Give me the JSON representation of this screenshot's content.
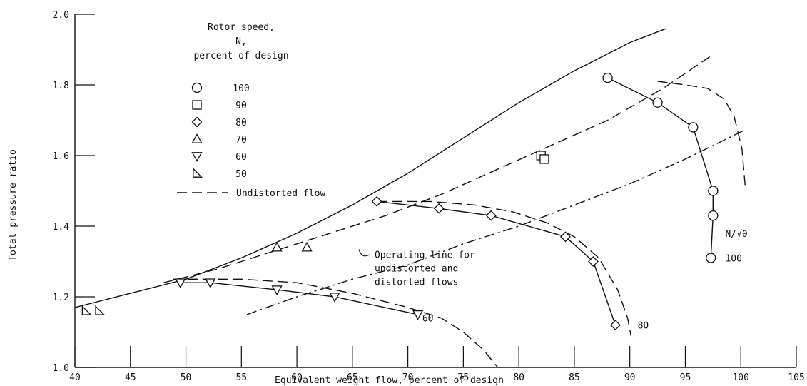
{
  "chart_data": {
    "type": "line",
    "title": "",
    "xlabel": "Equivalent weight flow, percent of design",
    "ylabel": "Total pressure ratio",
    "xlim": [
      40,
      105
    ],
    "ylim": [
      1.0,
      2.0
    ],
    "xticks": [
      40,
      45,
      50,
      55,
      60,
      65,
      70,
      75,
      80,
      85,
      90,
      95,
      100,
      105
    ],
    "yticks": [
      1.0,
      1.2,
      1.4,
      1.6,
      1.8,
      2.0
    ],
    "ytick_labels": [
      "1.0",
      "1.2",
      "1.4",
      "1.6",
      "1.8",
      "2.0"
    ],
    "grid": false,
    "legend": {
      "title_lines": [
        "Rotor speed,",
        "N,",
        "percent of design"
      ],
      "entries": [
        {
          "marker": "circle",
          "label": "100"
        },
        {
          "marker": "square",
          "label": "90"
        },
        {
          "marker": "diamond",
          "label": "80"
        },
        {
          "marker": "triangle-up",
          "label": "70"
        },
        {
          "marker": "triangle-down",
          "label": "60"
        },
        {
          "marker": "triangle-flag",
          "label": "50"
        }
      ],
      "dashed_label": "Undistorted flow"
    },
    "series": [
      {
        "marker": "circle",
        "style": "solid",
        "x": [
          88.0,
          92.5,
          95.7,
          97.5,
          97.5,
          97.3
        ],
        "y": [
          1.82,
          1.75,
          1.68,
          1.5,
          1.43,
          1.31
        ]
      },
      {
        "marker": "square",
        "style": "none",
        "x": [
          82.0,
          82.3
        ],
        "y": [
          1.6,
          1.59
        ]
      },
      {
        "marker": "diamond",
        "style": "solid",
        "x": [
          67.2,
          72.8,
          77.5,
          84.2,
          86.7,
          88.7
        ],
        "y": [
          1.47,
          1.45,
          1.43,
          1.37,
          1.3,
          1.12
        ]
      },
      {
        "marker": "triangle-up",
        "style": "none",
        "x": [
          58.2,
          60.9
        ],
        "y": [
          1.34,
          1.34
        ]
      },
      {
        "marker": "triangle-down",
        "style": "solid",
        "x": [
          49.5,
          52.2,
          58.2,
          63.4,
          70.9
        ],
        "y": [
          1.24,
          1.24,
          1.22,
          1.2,
          1.15
        ]
      },
      {
        "marker": "triangle-flag",
        "style": "none",
        "x": [
          41.0,
          42.2
        ],
        "y": [
          1.16,
          1.16
        ]
      }
    ],
    "curves": [
      {
        "style": "solid",
        "x": [
          40,
          45,
          50,
          55,
          60,
          65,
          70,
          75,
          80,
          85,
          90,
          93.3
        ],
        "y": [
          1.17,
          1.21,
          1.25,
          1.31,
          1.38,
          1.46,
          1.55,
          1.65,
          1.75,
          1.84,
          1.92,
          1.96
        ]
      },
      {
        "style": "dashed",
        "x": [
          48,
          53,
          58,
          63,
          68,
          73,
          78,
          83,
          88,
          93,
          97.2
        ],
        "y": [
          1.24,
          1.28,
          1.33,
          1.38,
          1.43,
          1.49,
          1.56,
          1.63,
          1.7,
          1.79,
          1.88
        ]
      },
      {
        "style": "dash-dot",
        "x": [
          55.5,
          60,
          65,
          70,
          75,
          80,
          85,
          90,
          95,
          100.2
        ],
        "y": [
          1.15,
          1.2,
          1.25,
          1.29,
          1.35,
          1.4,
          1.46,
          1.52,
          1.59,
          1.67
        ]
      },
      {
        "style": "dashed",
        "x": [
          67.2,
          72,
          76,
          79.5,
          82.5,
          85,
          87.2,
          88.9,
          89.8,
          90.1
        ],
        "y": [
          1.47,
          1.47,
          1.46,
          1.44,
          1.41,
          1.37,
          1.31,
          1.22,
          1.14,
          1.09
        ]
      },
      {
        "style": "dashed",
        "x": [
          48.8,
          55,
          60,
          65,
          70,
          73,
          75,
          76.8,
          78.1
        ],
        "y": [
          1.25,
          1.25,
          1.24,
          1.21,
          1.17,
          1.14,
          1.1,
          1.05,
          1.0
        ]
      },
      {
        "style": "dashed",
        "x": [
          92.5,
          95,
          97,
          98.5,
          99.4,
          100.1,
          100.4
        ],
        "y": [
          1.81,
          1.8,
          1.79,
          1.76,
          1.71,
          1.62,
          1.51
        ]
      }
    ],
    "annotations": [
      {
        "text": "N/√θ",
        "x": 98.6,
        "y": 1.38
      },
      {
        "text": "100",
        "x": 98.6,
        "y": 1.31
      },
      {
        "text": "80",
        "x": 90.7,
        "y": 1.12
      },
      {
        "text": "60",
        "x": 71.3,
        "y": 1.14
      },
      {
        "text_lines": [
          "Operating line for",
          "undistorted and",
          "distorted flows"
        ],
        "x": 67.0,
        "y": 1.29
      }
    ]
  }
}
